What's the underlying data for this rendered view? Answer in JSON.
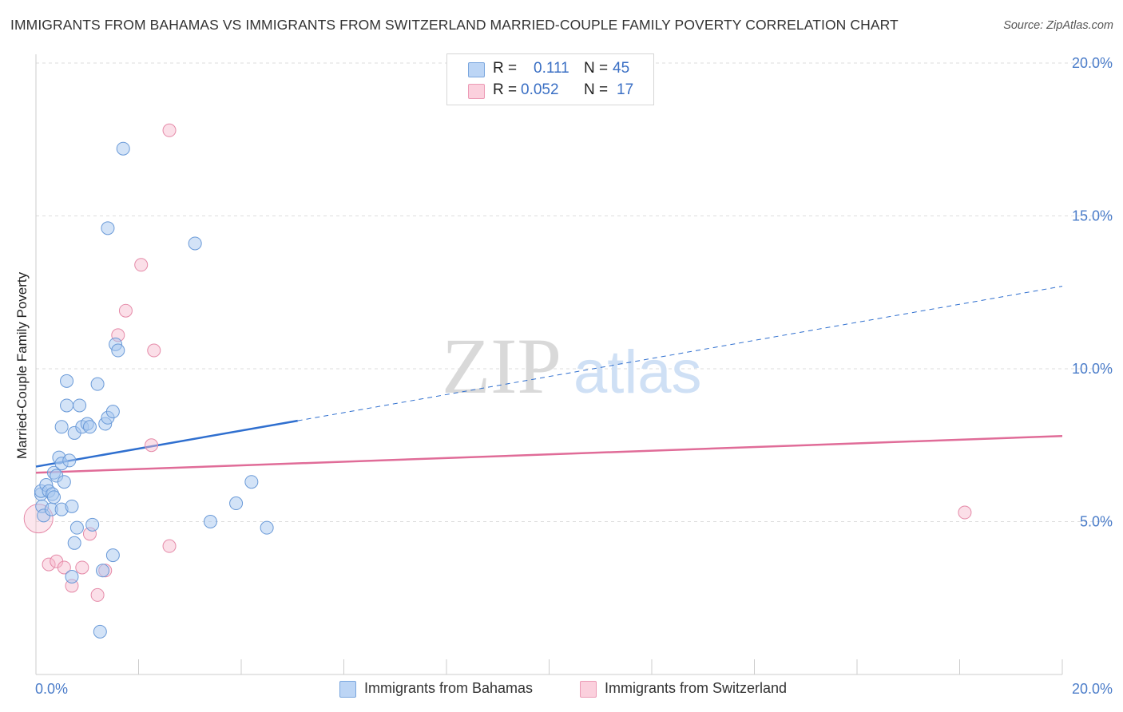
{
  "title": "IMMIGRANTS FROM BAHAMAS VS IMMIGRANTS FROM SWITZERLAND MARRIED-COUPLE FAMILY POVERTY CORRELATION CHART",
  "source": "Source: ZipAtlas.com",
  "watermark": {
    "zip": "ZIP",
    "atlas": "atlas"
  },
  "legend": {
    "rows": [
      {
        "r_label": "R =",
        "r_value": "0.111",
        "n_label": "N =",
        "n_value": "45"
      },
      {
        "r_label": "R =",
        "r_value": "0.052",
        "n_label": "N =",
        "n_value": "17"
      }
    ]
  },
  "colors": {
    "blue_fill": "#a8c8f0",
    "blue_stroke": "#6a9ad8",
    "blue_line": "#2f6fcf",
    "pink_fill": "#f6b8cb",
    "pink_stroke": "#e58aa8",
    "pink_line": "#e06c98",
    "grid": "#dddddd",
    "tick_text": "#4a7cc9"
  },
  "chart_data": {
    "type": "scatter",
    "title": "IMMIGRANTS FROM BAHAMAS VS IMMIGRANTS FROM SWITZERLAND MARRIED-COUPLE FAMILY POVERTY CORRELATION CHART",
    "xlabel": "",
    "ylabel": "Married-Couple Family Poverty",
    "xlim": [
      0,
      20
    ],
    "ylim": [
      0,
      20
    ],
    "x_tick_labels": [
      "0.0%",
      "20.0%"
    ],
    "y_ticks": [
      5,
      10,
      15,
      20
    ],
    "y_tick_labels": [
      "5.0%",
      "10.0%",
      "15.0%",
      "20.0%"
    ],
    "grid": true,
    "series": [
      {
        "name": "Immigrants from Bahamas",
        "color": "blue",
        "r": 0.111,
        "n": 45,
        "points": [
          [
            0.1,
            5.9
          ],
          [
            0.1,
            6.0
          ],
          [
            0.12,
            5.5
          ],
          [
            0.15,
            5.2
          ],
          [
            0.2,
            6.2
          ],
          [
            0.25,
            6.0
          ],
          [
            0.3,
            5.4
          ],
          [
            0.32,
            5.9
          ],
          [
            0.35,
            5.8
          ],
          [
            0.35,
            6.6
          ],
          [
            0.4,
            6.5
          ],
          [
            0.45,
            7.1
          ],
          [
            0.5,
            6.9
          ],
          [
            0.5,
            5.4
          ],
          [
            0.55,
            6.3
          ],
          [
            0.5,
            8.1
          ],
          [
            0.6,
            8.8
          ],
          [
            0.6,
            9.6
          ],
          [
            0.65,
            7.0
          ],
          [
            0.7,
            5.5
          ],
          [
            0.7,
            3.2
          ],
          [
            0.75,
            7.9
          ],
          [
            0.75,
            4.3
          ],
          [
            0.8,
            4.8
          ],
          [
            0.85,
            8.8
          ],
          [
            0.9,
            8.1
          ],
          [
            1.0,
            8.2
          ],
          [
            1.05,
            8.1
          ],
          [
            1.1,
            4.9
          ],
          [
            1.2,
            9.5
          ],
          [
            1.25,
            1.4
          ],
          [
            1.3,
            3.4
          ],
          [
            1.35,
            8.2
          ],
          [
            1.4,
            8.4
          ],
          [
            1.5,
            8.6
          ],
          [
            1.5,
            3.9
          ],
          [
            1.55,
            10.8
          ],
          [
            1.6,
            10.6
          ],
          [
            1.4,
            14.6
          ],
          [
            1.7,
            17.2
          ],
          [
            3.1,
            14.1
          ],
          [
            3.4,
            5.0
          ],
          [
            3.9,
            5.6
          ],
          [
            4.2,
            6.3
          ],
          [
            4.5,
            4.8
          ]
        ],
        "trend_solid": [
          [
            0.0,
            6.8
          ],
          [
            5.1,
            8.3
          ]
        ],
        "trend_dashed": [
          [
            5.1,
            8.3
          ],
          [
            20.0,
            12.7
          ]
        ]
      },
      {
        "name": "Immigrants from Switzerland",
        "color": "pink",
        "r": 0.052,
        "n": 17,
        "points": [
          [
            0.05,
            5.1
          ],
          [
            0.25,
            3.6
          ],
          [
            0.4,
            3.7
          ],
          [
            0.55,
            3.5
          ],
          [
            0.7,
            2.9
          ],
          [
            0.9,
            3.5
          ],
          [
            1.05,
            4.6
          ],
          [
            1.2,
            2.6
          ],
          [
            1.35,
            3.4
          ],
          [
            1.6,
            11.1
          ],
          [
            1.75,
            11.9
          ],
          [
            2.05,
            13.4
          ],
          [
            2.25,
            7.5
          ],
          [
            2.3,
            10.6
          ],
          [
            2.6,
            4.2
          ],
          [
            2.6,
            17.8
          ],
          [
            18.1,
            5.3
          ]
        ],
        "trend_solid": [
          [
            0.0,
            6.6
          ],
          [
            20.0,
            7.8
          ]
        ]
      }
    ]
  },
  "bottom_legend": [
    {
      "label": "Immigrants from Bahamas"
    },
    {
      "label": "Immigrants from Switzerland"
    }
  ]
}
